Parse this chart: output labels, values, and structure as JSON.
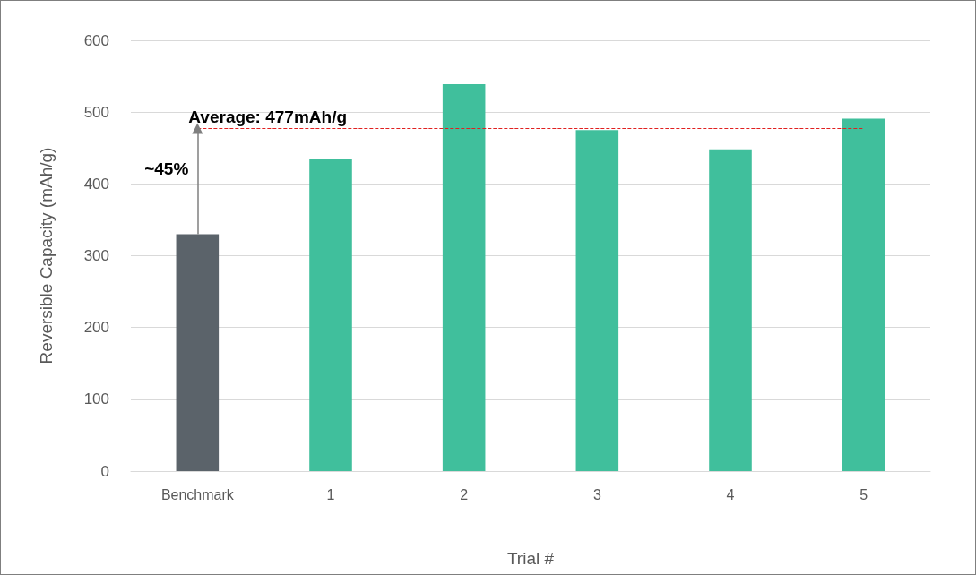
{
  "chart_data": {
    "type": "bar",
    "xlabel": "Trial #",
    "ylabel": "Reversible Capacity (mAh/g)",
    "categories": [
      "Benchmark",
      "1",
      "2",
      "3",
      "4",
      "5"
    ],
    "values": [
      330,
      435,
      539,
      475,
      448,
      491
    ],
    "colors": [
      "#5b636a",
      "#40bf9c",
      "#40bf9c",
      "#40bf9c",
      "#40bf9c",
      "#40bf9c"
    ],
    "ylim": [
      0,
      600
    ],
    "yticks": [
      0,
      100,
      200,
      300,
      400,
      500,
      600
    ],
    "grid": "y",
    "ref_lines": [
      {
        "axis": "y",
        "value": 477,
        "label": "Average: 477mAh/g",
        "color": "#e02020",
        "line_style": "dashed"
      }
    ],
    "annotations": [
      "~45%"
    ]
  }
}
